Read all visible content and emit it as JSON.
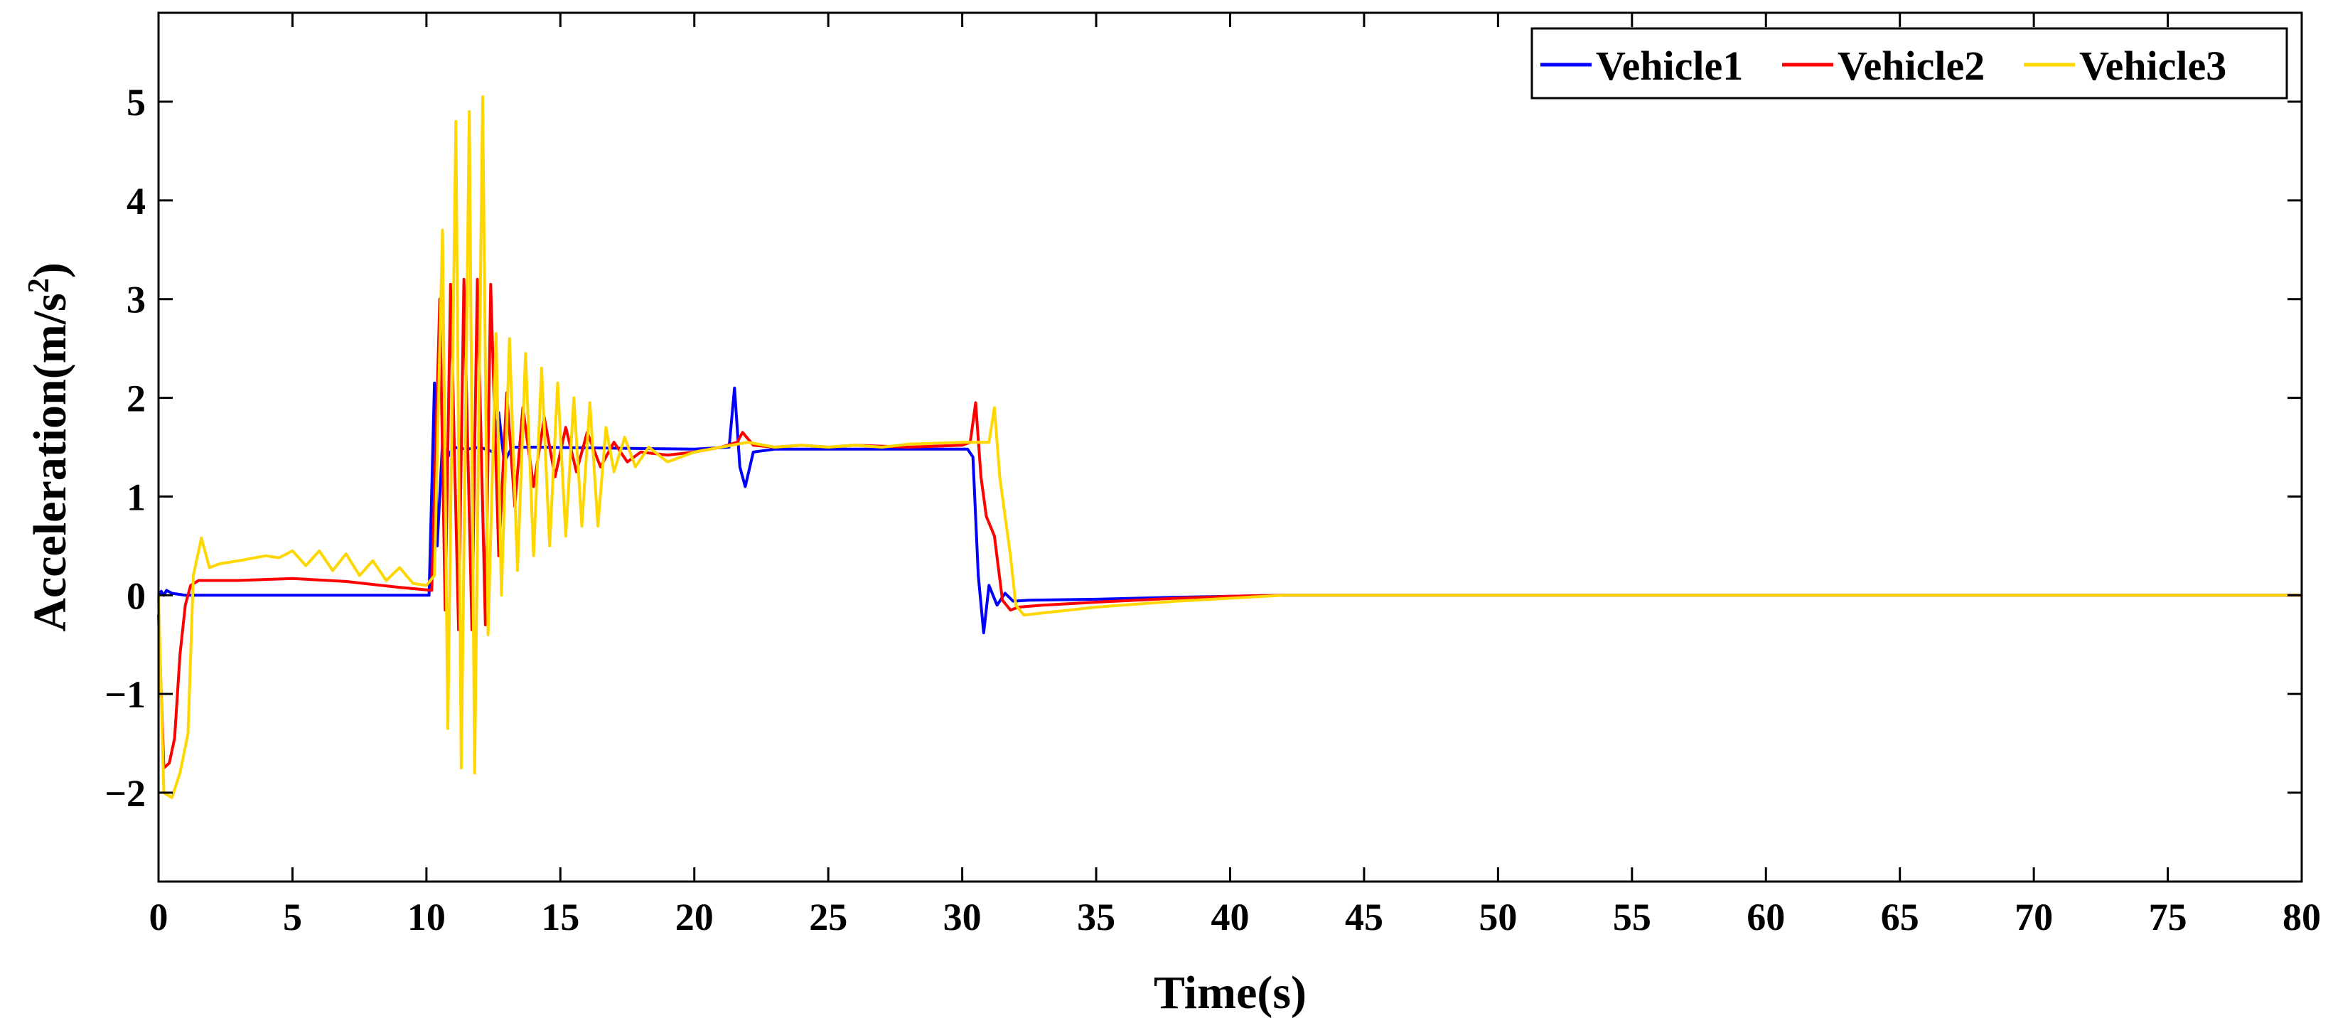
{
  "chart_data": {
    "type": "line",
    "xlabel": "Time(s)",
    "ylabel": "Acceleration(m/s",
    "ylabel_superscript": "2",
    "ylabel_suffix": ")",
    "xlim": [
      0,
      80
    ],
    "ylim": [
      -2.9,
      5.9
    ],
    "xticks": [
      0,
      5,
      10,
      15,
      20,
      25,
      30,
      35,
      40,
      45,
      50,
      55,
      60,
      65,
      70,
      75,
      80
    ],
    "yticks": [
      -2,
      -1,
      0,
      1,
      2,
      3,
      4,
      5
    ],
    "ytick_labels": [
      "−2",
      "−1",
      "0",
      "1",
      "2",
      "3",
      "4",
      "5"
    ],
    "grid": false,
    "legend_position": "top-right",
    "legend_orientation": "horizontal",
    "series": [
      {
        "name": "Vehicle1",
        "color": "#0000ff",
        "x": [
          0,
          0.1,
          0.2,
          0.3,
          0.5,
          1,
          10.1,
          10.3,
          10.4,
          10.6,
          10.8,
          11.0,
          11.5,
          12.0,
          12.5,
          12.7,
          12.9,
          13.2,
          14,
          20,
          21.3,
          21.5,
          21.7,
          21.9,
          22.2,
          23,
          25,
          30.2,
          30.4,
          30.6,
          30.8,
          31.0,
          31.3,
          31.6,
          31.9,
          32.5,
          35,
          38,
          40,
          42,
          80
        ],
        "y": [
          0,
          0.04,
          0.0,
          0.05,
          0.02,
          0.0,
          0.0,
          2.15,
          0.5,
          1.55,
          1.4,
          1.5,
          1.48,
          1.5,
          1.45,
          1.85,
          1.35,
          1.5,
          1.5,
          1.48,
          1.5,
          2.1,
          1.3,
          1.1,
          1.45,
          1.48,
          1.48,
          1.48,
          1.4,
          0.2,
          -0.38,
          0.1,
          -0.1,
          0.02,
          -0.06,
          -0.05,
          -0.04,
          -0.02,
          -0.01,
          0.0,
          0.0
        ]
      },
      {
        "name": "Vehicle2",
        "color": "#ff0000",
        "x": [
          0,
          0.2,
          0.4,
          0.6,
          0.8,
          1.0,
          1.2,
          1.5,
          3,
          5,
          7,
          9,
          10.2,
          10.5,
          10.7,
          10.9,
          11.2,
          11.4,
          11.7,
          11.9,
          12.2,
          12.4,
          12.7,
          13.0,
          13.3,
          13.6,
          14.0,
          14.4,
          14.8,
          15.2,
          15.6,
          16.0,
          16.5,
          17.0,
          17.5,
          18,
          19,
          20,
          21,
          21.6,
          21.8,
          22.2,
          23,
          24,
          25,
          26,
          28,
          30,
          30.3,
          30.5,
          30.7,
          30.9,
          31.2,
          31.5,
          31.8,
          32.1,
          33,
          35,
          38,
          40,
          42,
          45,
          80
        ],
        "y": [
          -0.2,
          -1.75,
          -1.7,
          -1.45,
          -0.6,
          -0.1,
          0.1,
          0.15,
          0.15,
          0.17,
          0.14,
          0.08,
          0.05,
          3.0,
          -0.15,
          3.15,
          -0.35,
          3.2,
          -0.35,
          3.2,
          -0.3,
          3.15,
          0.4,
          2.05,
          0.9,
          1.9,
          1.1,
          1.8,
          1.2,
          1.7,
          1.25,
          1.65,
          1.3,
          1.55,
          1.35,
          1.45,
          1.42,
          1.45,
          1.5,
          1.55,
          1.65,
          1.52,
          1.5,
          1.52,
          1.5,
          1.52,
          1.5,
          1.52,
          1.55,
          1.95,
          1.2,
          0.8,
          0.6,
          -0.05,
          -0.15,
          -0.12,
          -0.1,
          -0.07,
          -0.03,
          -0.01,
          0.0,
          0.0,
          0.0
        ]
      },
      {
        "name": "Vehicle3",
        "color": "#ffd700",
        "x": [
          0,
          0.2,
          0.5,
          0.8,
          1.1,
          1.3,
          1.6,
          1.9,
          2.3,
          3,
          4,
          4.5,
          5,
          5.5,
          6,
          6.5,
          7,
          7.5,
          8,
          8.5,
          9,
          9.5,
          10,
          10.3,
          10.6,
          10.8,
          11.1,
          11.3,
          11.6,
          11.8,
          12.1,
          12.3,
          12.6,
          12.8,
          13.1,
          13.4,
          13.7,
          14.0,
          14.3,
          14.6,
          14.9,
          15.2,
          15.5,
          15.8,
          16.1,
          16.4,
          16.7,
          17.0,
          17.4,
          17.8,
          18.3,
          19,
          20,
          21,
          22,
          23,
          24,
          25,
          26,
          27,
          28,
          30,
          31,
          31.2,
          31.4,
          31.6,
          31.8,
          32.0,
          32.3,
          33,
          35,
          38,
          40,
          42,
          45,
          80
        ],
        "y": [
          0,
          -2.0,
          -2.05,
          -1.8,
          -1.4,
          0.2,
          0.58,
          0.28,
          0.32,
          0.35,
          0.4,
          0.38,
          0.45,
          0.3,
          0.45,
          0.25,
          0.42,
          0.2,
          0.35,
          0.15,
          0.28,
          0.12,
          0.1,
          0.2,
          3.7,
          -1.35,
          4.8,
          -1.75,
          4.9,
          -1.8,
          5.05,
          -0.4,
          2.65,
          0.0,
          2.6,
          0.25,
          2.45,
          0.4,
          2.3,
          0.5,
          2.15,
          0.6,
          2.0,
          0.7,
          1.95,
          0.7,
          1.7,
          1.25,
          1.6,
          1.3,
          1.5,
          1.35,
          1.45,
          1.5,
          1.55,
          1.5,
          1.52,
          1.5,
          1.52,
          1.5,
          1.53,
          1.55,
          1.55,
          1.9,
          1.2,
          0.8,
          0.4,
          -0.1,
          -0.2,
          -0.18,
          -0.12,
          -0.06,
          -0.03,
          0.0,
          0.0,
          0.0
        ]
      }
    ]
  }
}
